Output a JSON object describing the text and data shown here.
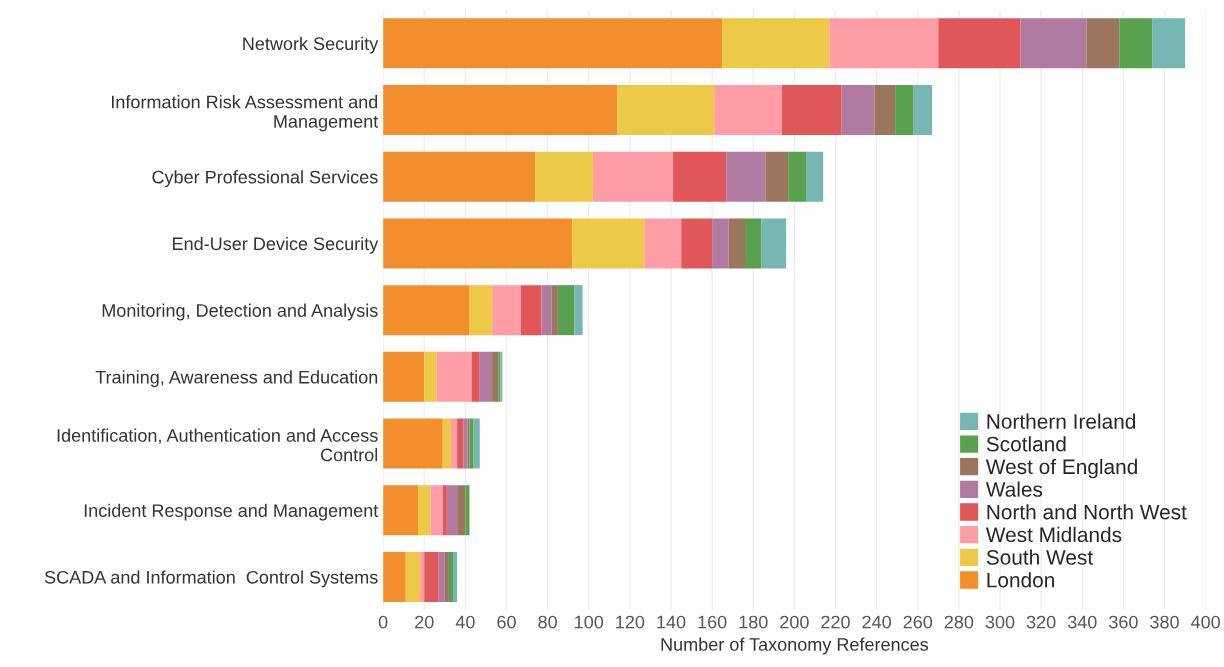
{
  "chart_data": {
    "type": "bar",
    "orientation": "horizontal",
    "stacked": true,
    "xlabel": "Number of Taxonomy References",
    "categories": [
      "Network Security",
      "Information Risk Assessment and Management",
      "Cyber Professional Services",
      "End-User Device Security",
      "Monitoring, Detection and Analysis",
      "Training, Awareness and Education",
      "Identification, Authentication and Access Control",
      "Incident Response and Management",
      "SCADA and Information  Control Systems"
    ],
    "series": [
      {
        "name": "London",
        "color": "#f28e2b",
        "values": [
          165,
          114,
          74,
          92,
          42,
          20,
          29,
          17,
          11
        ]
      },
      {
        "name": "South West",
        "color": "#edc948",
        "values": [
          52,
          47,
          28,
          35,
          11,
          6,
          4,
          6,
          7
        ]
      },
      {
        "name": "West Midlands",
        "color": "#ff9da7",
        "values": [
          53,
          33,
          39,
          18,
          14,
          17,
          3,
          6,
          2
        ]
      },
      {
        "name": "North and North West",
        "color": "#e15759",
        "values": [
          40,
          29,
          26,
          15,
          10,
          4,
          3,
          2,
          7
        ]
      },
      {
        "name": "Wales",
        "color": "#b07aa1",
        "values": [
          32,
          16,
          19,
          8,
          5,
          6,
          2,
          5,
          3
        ]
      },
      {
        "name": "West of England",
        "color": "#9c755f",
        "values": [
          16,
          10,
          11,
          8,
          3,
          3,
          1,
          4,
          2
        ]
      },
      {
        "name": "Scotland",
        "color": "#59a14f",
        "values": [
          16,
          9,
          9,
          8,
          8,
          1,
          2,
          2,
          2
        ]
      },
      {
        "name": "Northern Ireland",
        "color": "#76b7b2",
        "values": [
          16,
          9,
          8,
          12,
          4,
          1,
          3,
          0,
          2
        ]
      }
    ],
    "xlim": [
      0,
      400
    ],
    "xticks": [
      0,
      20,
      40,
      60,
      80,
      100,
      120,
      140,
      160,
      180,
      200,
      220,
      240,
      260,
      280,
      300,
      320,
      340,
      360,
      380,
      400
    ],
    "grid": "x",
    "legend": "bottom right"
  }
}
